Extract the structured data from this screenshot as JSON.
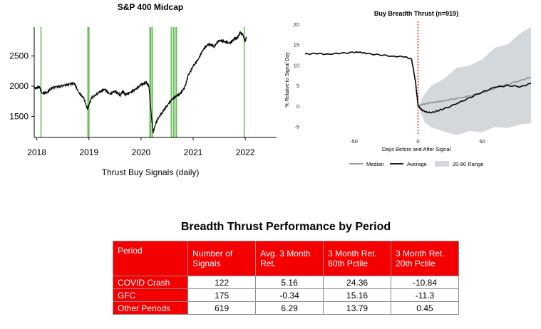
{
  "chart_data": [
    {
      "type": "line",
      "title": "S&P 400 Midcap",
      "xlabel": "Thrust Buy Signals (daily)",
      "ylabel": "",
      "x_ticks": [
        "2018",
        "2019",
        "2020",
        "2021",
        "2022"
      ],
      "y_ticks": [
        1500,
        2000,
        2500
      ],
      "xlim": [
        2017.95,
        2022.6
      ],
      "ylim": [
        1150,
        2980
      ],
      "grid": false,
      "series": [
        {
          "x": [
            2017.96,
            2018.05,
            2018.1,
            2018.2,
            2018.3,
            2018.45,
            2018.6,
            2018.72,
            2018.8,
            2018.9,
            2018.97,
            2019.05,
            2019.2,
            2019.3,
            2019.4,
            2019.5,
            2019.6,
            2019.65,
            2019.7,
            2019.8,
            2019.9,
            2020.0,
            2020.1,
            2020.15,
            2020.18,
            2020.2,
            2020.23,
            2020.3,
            2020.4,
            2020.5,
            2020.6,
            2020.7,
            2020.75,
            2020.85,
            2020.9,
            2021.0,
            2021.1,
            2021.2,
            2021.3,
            2021.4,
            2021.5,
            2021.6,
            2021.7,
            2021.8,
            2021.85,
            2021.9,
            2021.95,
            2022.0,
            2022.02
          ],
          "y": [
            1960,
            1990,
            1880,
            1900,
            1980,
            2000,
            2030,
            2050,
            1900,
            1800,
            1620,
            1800,
            1900,
            1950,
            1870,
            1920,
            1850,
            1920,
            1860,
            1900,
            1950,
            2020,
            2060,
            2000,
            1700,
            1500,
            1230,
            1430,
            1560,
            1680,
            1790,
            1850,
            1870,
            2000,
            2170,
            2330,
            2450,
            2620,
            2700,
            2660,
            2760,
            2740,
            2710,
            2790,
            2800,
            2890,
            2860,
            2740,
            2820
          ]
        }
      ],
      "signals": [
        2018.08,
        2018.98,
        2019.0,
        2020.17,
        2020.19,
        2020.22,
        2020.58,
        2020.62,
        2020.65,
        2020.68,
        2021.98
      ]
    },
    {
      "type": "line",
      "title": "Buy Breadth Thrust (n=919)",
      "xlabel": "Days Before and After Signal",
      "ylabel": "% Relative to Signal Day",
      "x_ticks": [
        -50,
        0,
        50
      ],
      "y_ticks": [
        -5,
        0,
        5,
        10,
        15,
        20
      ],
      "xlim": [
        -88,
        88
      ],
      "ylim": [
        -7,
        20
      ],
      "grid": false,
      "legend_position": "bottom",
      "range_band": {
        "name": "20-80 Range",
        "color": "#d3d8dc",
        "x": [
          0,
          5,
          10,
          20,
          30,
          40,
          50,
          60,
          70,
          80,
          88
        ],
        "upper": [
          0,
          3,
          4.5,
          7,
          9,
          10,
          11.5,
          14,
          15.5,
          17.5,
          19.5
        ],
        "lower": [
          0,
          -4,
          -5,
          -6.5,
          -6.8,
          -6.5,
          -6,
          -5.5,
          -5,
          -4.8,
          -4
        ]
      },
      "series": [
        {
          "name": "Median",
          "color": "#8c8c8c",
          "x": [
            0,
            3,
            6,
            10,
            15,
            20,
            30,
            40,
            50,
            60,
            70,
            80,
            88
          ],
          "y": [
            0,
            0.3,
            0.6,
            0.8,
            1.0,
            1.3,
            1.8,
            2.4,
            3.3,
            4.3,
            5.3,
            6.3,
            7.0
          ]
        },
        {
          "name": "Average",
          "color": "#000000",
          "x": [
            -88,
            -80,
            -70,
            -60,
            -50,
            -45,
            -40,
            -30,
            -20,
            -10,
            -5,
            -2,
            0,
            3,
            6,
            10,
            15,
            20,
            30,
            40,
            50,
            60,
            70,
            80,
            88
          ],
          "y": [
            12.7,
            12.8,
            12.7,
            12.9,
            13.1,
            13.2,
            12.8,
            12.5,
            12.2,
            12.0,
            11.4,
            6.0,
            0,
            -1.0,
            -1.4,
            -1.7,
            -1.2,
            -0.7,
            0.5,
            2.0,
            3.4,
            4.6,
            5.0,
            4.7,
            5.5
          ]
        }
      ],
      "signal_day": 0
    },
    {
      "type": "table",
      "title": "Breadth Thrust Performance by Period",
      "columns": [
        "Period",
        "Number of Signals",
        "Avg. 3 Month Ret.",
        "3 Month Ret. 80th Pctile",
        "3 Month Ret. 20th Pctile"
      ],
      "rows": [
        [
          "COVID Crash",
          "122",
          "5.16",
          "24.36",
          "-10.84"
        ],
        [
          "GFC",
          "175",
          "-0.34",
          "15.16",
          "-11.3"
        ],
        [
          "Other Periods",
          "619",
          "6.29",
          "13.79",
          "0.45"
        ]
      ]
    }
  ]
}
